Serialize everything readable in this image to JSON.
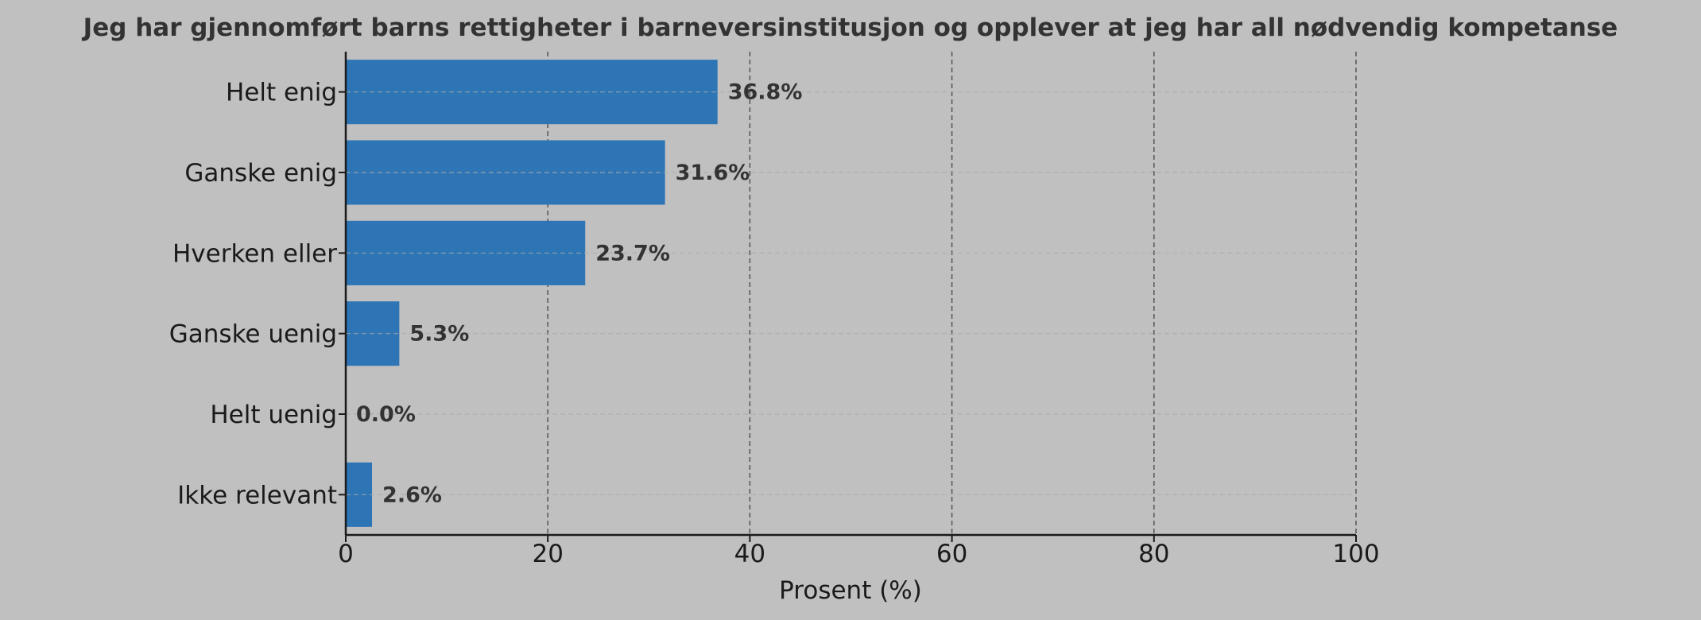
{
  "chart_data": {
    "type": "bar",
    "orientation": "horizontal",
    "title": "Jeg har gjennomført barns rettigheter i barneversinstitusjon og opplever at jeg har all nødvendig kompetanse",
    "xlabel": "Prosent (%)",
    "ylabel": "",
    "categories": [
      "Helt enig",
      "Ganske enig",
      "Hverken eller",
      "Ganske uenig",
      "Helt uenig",
      "Ikke relevant"
    ],
    "values": [
      36.8,
      31.6,
      23.7,
      5.3,
      0.0,
      2.6
    ],
    "value_labels": [
      "36.8%",
      "31.6%",
      "23.7%",
      "5.3%",
      "0.0%",
      "2.6%"
    ],
    "xlim": [
      0,
      100
    ],
    "xticks": [
      0,
      20,
      40,
      60,
      80,
      100
    ],
    "xtick_labels": [
      "0",
      "20",
      "40",
      "60",
      "80",
      "100"
    ],
    "grid": "vertical dashed, horizontal faint dashed",
    "legend": "none",
    "colors": {
      "bar": "#2e75b6",
      "background": "#c0c0c0",
      "title": "#333333",
      "text": "#1a1a1a",
      "grid_major": "#555555",
      "grid_minor": "#aaaaaa"
    }
  }
}
